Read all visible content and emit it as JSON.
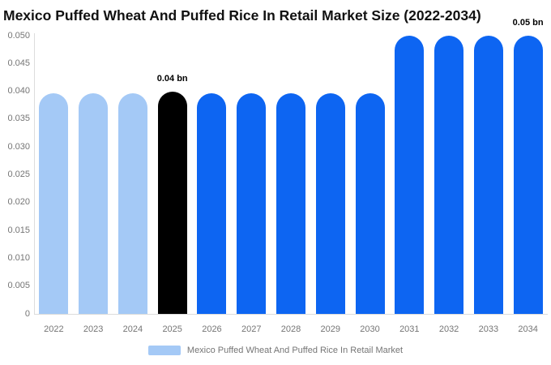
{
  "title": "Mexico Puffed Wheat And Puffed Rice In Retail Market Size (2022-2034)",
  "chart_data": {
    "type": "bar",
    "title": "Mexico Puffed Wheat And Puffed Rice In Retail Market Size (2022-2034)",
    "xlabel": "",
    "ylabel": "",
    "unit": "bn",
    "categories": [
      "2022",
      "2023",
      "2024",
      "2025",
      "2026",
      "2027",
      "2028",
      "2029",
      "2030",
      "2031",
      "2032",
      "2033",
      "2034"
    ],
    "series": [
      {
        "name": "Mexico Puffed Wheat And Puffed Rice In Retail Market",
        "values": [
          0.0397,
          0.0397,
          0.0397,
          0.04,
          0.0397,
          0.0397,
          0.0397,
          0.0397,
          0.0397,
          0.05,
          0.05,
          0.05,
          0.05
        ]
      }
    ],
    "bar_colors": [
      "#a4c9f6",
      "#a4c9f6",
      "#a4c9f6",
      "#000000",
      "#0d65f2",
      "#0d65f2",
      "#0d65f2",
      "#0d65f2",
      "#0d65f2",
      "#0d65f2",
      "#0d65f2",
      "#0d65f2",
      "#0d65f2"
    ],
    "ylim": [
      0,
      0.05
    ],
    "yticks": [
      "0.050",
      "0.045",
      "0.040",
      "0.035",
      "0.030",
      "0.025",
      "0.020",
      "0.015",
      "0.010",
      "0.005",
      "0"
    ],
    "grid": false,
    "annotations": [
      {
        "category": "2025",
        "text": "0.04 bn"
      },
      {
        "category": "2034",
        "text": "0.05 bn"
      }
    ],
    "legend": {
      "position": "bottom",
      "items": [
        {
          "label": "Mexico Puffed Wheat And Puffed Rice In Retail Market",
          "color": "#a4c9f6"
        }
      ]
    }
  },
  "colors": {
    "background": "#ffffff",
    "axis": "#dcdcdc",
    "tick_text": "#757575",
    "title_text": "#111111",
    "annotation_text": "#000000",
    "highlight_bar": "#000000",
    "past_bar": "#a4c9f6",
    "forecast_bar": "#0d65f2"
  }
}
